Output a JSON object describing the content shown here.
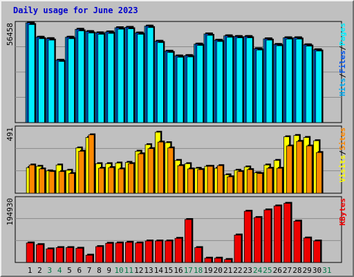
{
  "title": "Daily usage for June 2023",
  "colors": {
    "hits": "#00aaee",
    "files": "#0055ee",
    "pages": "#00eeff",
    "visits": "#ffff00",
    "sites": "#ff8800",
    "kbytes": "#ee0000",
    "weekday_label": "#000000",
    "weekend_label": "#007744",
    "separator": "#000000"
  },
  "chart_data": [
    {
      "type": "bar",
      "ymax_label": "56458",
      "ylim": [
        0,
        56458
      ],
      "grid": true,
      "legend_placement": "right (vertical)",
      "legend": [
        "Pages",
        "Files",
        "Hits"
      ],
      "categories": [
        "1",
        "2",
        "3",
        "4",
        "5",
        "6",
        "7",
        "8",
        "9",
        "10",
        "11",
        "12",
        "13",
        "14",
        "15",
        "16",
        "17",
        "18",
        "19",
        "20",
        "21",
        "22",
        "23",
        "24",
        "25",
        "26",
        "27",
        "28",
        "29",
        "30"
      ],
      "series": [
        {
          "name": "Hits",
          "values": [
            56458,
            48300,
            47500,
            35300,
            48300,
            52800,
            51500,
            50800,
            51300,
            53700,
            53900,
            50700,
            54600,
            46000,
            40400,
            37700,
            37900,
            44400,
            50200,
            46600,
            49100,
            48700,
            48700,
            41800,
            47400,
            44200,
            48000,
            48000,
            44000,
            41200
          ]
        },
        {
          "name": "Files",
          "values": [
            56458,
            48300,
            47500,
            35300,
            48300,
            52800,
            51500,
            50800,
            51300,
            53700,
            53900,
            50700,
            54600,
            46000,
            40400,
            37700,
            37900,
            44400,
            50200,
            46600,
            49100,
            48700,
            48700,
            41800,
            47400,
            44200,
            48000,
            48000,
            44000,
            41200
          ]
        },
        {
          "name": "Pages",
          "values": [
            55500,
            47500,
            46700,
            34600,
            47500,
            51900,
            50700,
            50000,
            50500,
            52900,
            53100,
            50000,
            53800,
            45300,
            39700,
            37000,
            37200,
            43700,
            49400,
            45900,
            48300,
            48000,
            48000,
            41100,
            46700,
            43500,
            47300,
            47300,
            43300,
            40500
          ]
        }
      ]
    },
    {
      "type": "bar",
      "ymax_label": "491",
      "ylim": [
        0,
        491
      ],
      "grid": true,
      "legend_placement": "right (vertical)",
      "legend": [
        "Sites",
        "Visits"
      ],
      "categories": [
        "1",
        "2",
        "3",
        "4",
        "5",
        "6",
        "7",
        "8",
        "9",
        "10",
        "11",
        "12",
        "13",
        "14",
        "15",
        "16",
        "17",
        "18",
        "19",
        "20",
        "21",
        "22",
        "23",
        "24",
        "25",
        "26",
        "27",
        "28",
        "29",
        "30"
      ],
      "series": [
        {
          "name": "Visits",
          "values": [
            195,
            205,
            170,
            215,
            175,
            345,
            425,
            225,
            225,
            230,
            235,
            320,
            370,
            465,
            385,
            250,
            225,
            190,
            205,
            190,
            140,
            175,
            200,
            155,
            215,
            250,
            430,
            440,
            425,
            400
          ]
        },
        {
          "name": "Sites",
          "values": [
            215,
            185,
            165,
            165,
            150,
            320,
            445,
            190,
            195,
            185,
            225,
            300,
            340,
            390,
            345,
            210,
            185,
            180,
            205,
            210,
            125,
            165,
            180,
            150,
            190,
            190,
            360,
            395,
            360,
            310
          ]
        }
      ]
    },
    {
      "type": "bar",
      "ymax_label": "194930",
      "ylim": [
        0,
        194930
      ],
      "grid": true,
      "legend_placement": "right (vertical)",
      "legend": [
        "KBytes"
      ],
      "categories": [
        "1",
        "2",
        "3",
        "4",
        "5",
        "6",
        "7",
        "8",
        "9",
        "10",
        "11",
        "12",
        "13",
        "14",
        "15",
        "16",
        "17",
        "18",
        "19",
        "20",
        "21",
        "22",
        "23",
        "24",
        "25",
        "26",
        "27",
        "28",
        "29",
        "30"
      ],
      "series": [
        {
          "name": "KBytes",
          "values": [
            59000,
            54000,
            41000,
            45000,
            45000,
            43000,
            22000,
            48000,
            58000,
            59000,
            61000,
            59000,
            65000,
            65000,
            65000,
            73000,
            130000,
            45000,
            13000,
            13000,
            9000,
            83000,
            155000,
            136000,
            159000,
            171000,
            179000,
            125000,
            74000,
            65000
          ]
        }
      ]
    }
  ],
  "days": [
    "1",
    "2",
    "3",
    "4",
    "5",
    "6",
    "7",
    "8",
    "9",
    "10",
    "11",
    "12",
    "13",
    "14",
    "15",
    "16",
    "17",
    "18",
    "19",
    "20",
    "21",
    "22",
    "23",
    "24",
    "25",
    "26",
    "27",
    "28",
    "29",
    "30",
    "31"
  ],
  "weekend_days": [
    "3",
    "4",
    "10",
    "11",
    "17",
    "18",
    "24",
    "25",
    "31"
  ]
}
